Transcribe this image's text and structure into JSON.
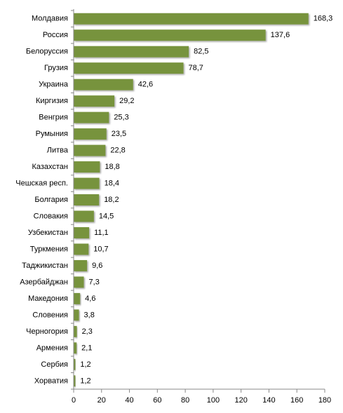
{
  "chart_data": {
    "type": "bar",
    "orientation": "horizontal",
    "categories": [
      "Молдавия",
      "Россия",
      "Белоруссия",
      "Грузия",
      "Украина",
      "Киргизия",
      "Венгрия",
      "Румыния",
      "Литва",
      "Казахстан",
      "Чешская респ.",
      "Болгария",
      "Словакия",
      "Узбекистан",
      "Туркмения",
      "Таджикистан",
      "Азербайджан",
      "Македония",
      "Словения",
      "Черногория",
      "Армения",
      "Сербия",
      "Хорватия"
    ],
    "values": [
      168.3,
      137.6,
      82.5,
      78.7,
      42.6,
      29.2,
      25.3,
      23.5,
      22.8,
      18.8,
      18.4,
      18.2,
      14.5,
      11.1,
      10.7,
      9.6,
      7.3,
      4.6,
      3.8,
      2.3,
      2.1,
      1.2,
      1.2
    ],
    "value_labels": [
      "168,3",
      "137,6",
      "82,5",
      "78,7",
      "42,6",
      "29,2",
      "25,3",
      "23,5",
      "22,8",
      "18,8",
      "18,4",
      "18,2",
      "14,5",
      "11,1",
      "10,7",
      "9,6",
      "7,3",
      "4,6",
      "3,8",
      "2,3",
      "2,1",
      "1,2",
      "1,2"
    ],
    "x_ticks": [
      0,
      20,
      40,
      60,
      80,
      100,
      120,
      140,
      160,
      180
    ],
    "xlim": [
      0,
      180
    ],
    "bar_color": "#77933c",
    "grid": false,
    "legend": "none"
  }
}
